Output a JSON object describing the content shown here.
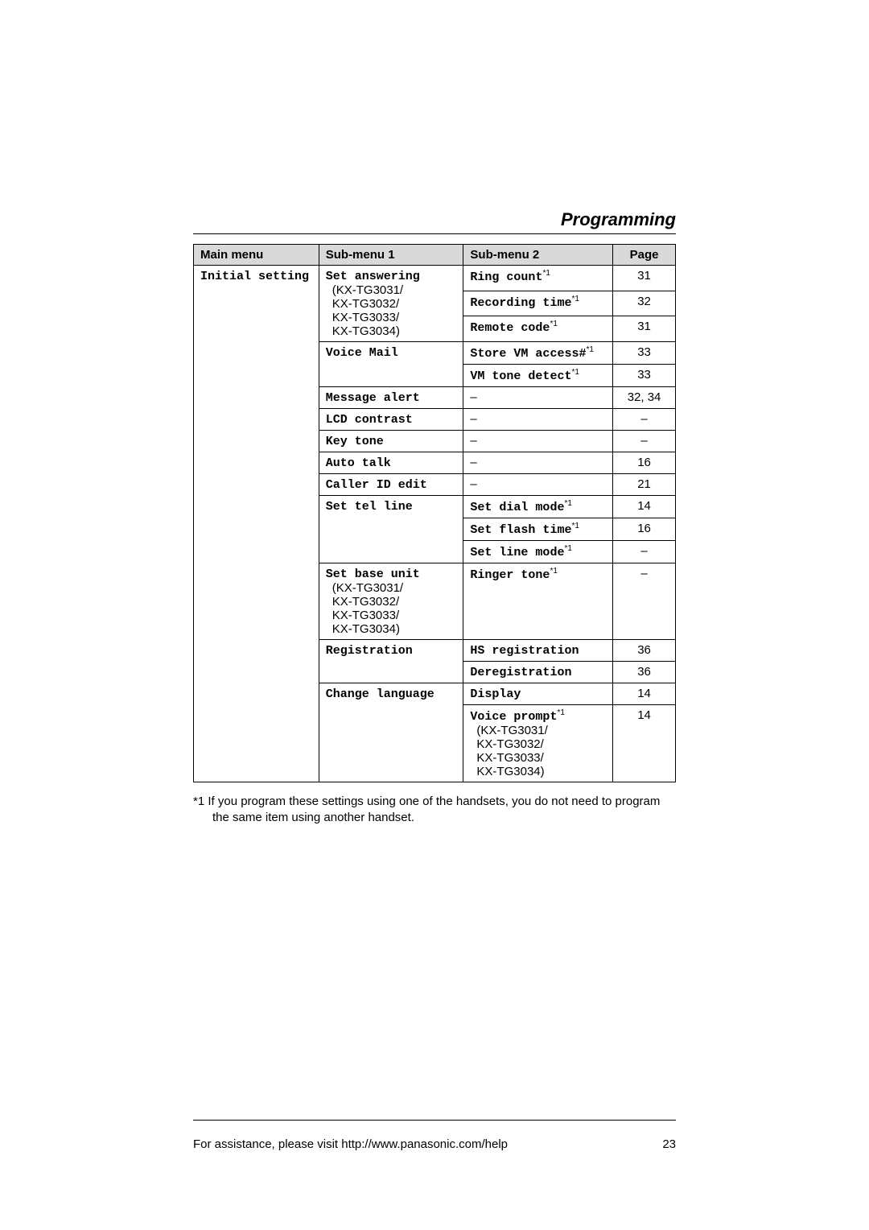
{
  "section_title": "Programming",
  "headers": {
    "main": "Main menu",
    "sub1": "Sub-menu 1",
    "sub2": "Sub-menu 2",
    "page": "Page"
  },
  "main_menu": "Initial setting",
  "models_block": "(KX-TG3031/\n KX-TG3032/\n KX-TG3033/\n KX-TG3034)",
  "sub1": {
    "set_answering": "Set answering",
    "voice_mail": "Voice Mail",
    "message_alert": "Message alert",
    "lcd_contrast": "LCD contrast",
    "key_tone": "Key tone",
    "auto_talk": "Auto talk",
    "caller_id_edit": "Caller ID edit",
    "set_tel_line": "Set tel line",
    "set_base_unit": "Set base unit",
    "registration": "Registration",
    "change_language": "Change language"
  },
  "sub2": {
    "ring_count": "Ring count",
    "recording_time": "Recording time",
    "remote_code": "Remote code",
    "store_vm": "Store VM access#",
    "vm_tone": "VM tone detect",
    "set_dial_mode": "Set dial mode",
    "set_flash_time": "Set flash time",
    "set_line_mode": "Set line mode",
    "ringer_tone": "Ringer tone",
    "hs_registration": "HS registration",
    "deregistration": "Deregistration",
    "display": "Display",
    "voice_prompt": "Voice prompt"
  },
  "pages": {
    "ring_count": "31",
    "recording_time": "32",
    "remote_code": "31",
    "store_vm": "33",
    "vm_tone": "33",
    "message_alert": "32, 34",
    "lcd_contrast": "–",
    "key_tone": "–",
    "auto_talk": "16",
    "caller_id_edit": "21",
    "set_dial_mode": "14",
    "set_flash_time": "16",
    "set_line_mode": "–",
    "ringer_tone": "–",
    "hs_registration": "36",
    "deregistration": "36",
    "display": "14",
    "voice_prompt": "14"
  },
  "dash": "–",
  "star1": "*1",
  "footnote": "*1  If you program these settings using one of the handsets, you do not need to program the same item using another handset.",
  "footer_assist": "For assistance, please visit http://www.panasonic.com/help",
  "footer_page": "23"
}
